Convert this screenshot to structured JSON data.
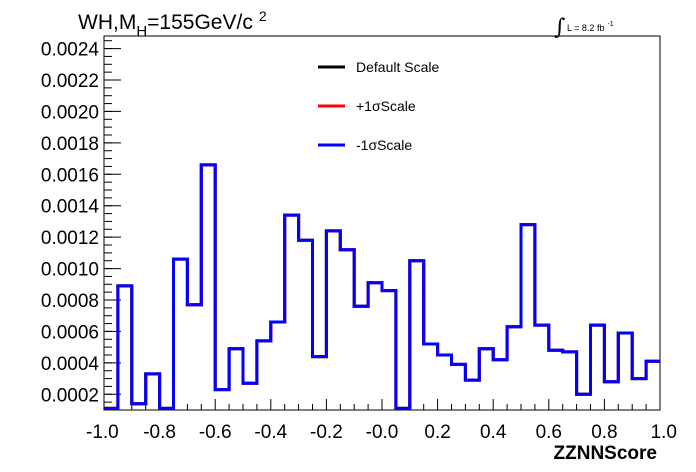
{
  "title": {
    "base": "WH,M",
    "sub": "H",
    "rest": "=155GeV/c",
    "sup": "2"
  },
  "luminosity": {
    "integral_sign": "∫",
    "text": "L = 8.2 fb",
    "sup": "-1"
  },
  "chart_data": {
    "type": "line",
    "title": "WH,MH=155GeV/c2",
    "xlabel": "ZZNNScore",
    "ylabel": "",
    "xlim": [
      -1.0,
      1.0
    ],
    "ylim": [
      0.0001,
      0.00248
    ],
    "x_ticks": [
      "-1.0",
      "-0.8",
      "-0.6",
      "-0.4",
      "-0.2",
      "-0.0",
      "0.2",
      "0.4",
      "0.6",
      "0.8",
      "1.0"
    ],
    "y_ticks": [
      "0.0002",
      "0.0004",
      "0.0006",
      "0.0008",
      "0.0010",
      "0.0012",
      "0.0014",
      "0.0016",
      "0.0018",
      "0.0020",
      "0.0022",
      "0.0024"
    ],
    "bin_edges": [
      -1.0,
      -0.95,
      -0.9,
      -0.85,
      -0.8,
      -0.75,
      -0.7,
      -0.65,
      -0.6,
      -0.55,
      -0.5,
      -0.45,
      -0.4,
      -0.35,
      -0.3,
      -0.25,
      -0.2,
      -0.15,
      -0.1,
      -0.05,
      0.0,
      0.05,
      0.1,
      0.15,
      0.2,
      0.25,
      0.3,
      0.35,
      0.4,
      0.45,
      0.5,
      0.55,
      0.6,
      0.65,
      0.7,
      0.75,
      0.8,
      0.85,
      0.9,
      0.95,
      1.0
    ],
    "series": [
      {
        "name": "Default Scale",
        "color": "#000000",
        "values": [
          0.00011,
          0.00089,
          0.00014,
          0.00033,
          0.00011,
          0.00106,
          0.00077,
          0.00166,
          0.00023,
          0.00049,
          0.00027,
          0.00054,
          0.00066,
          0.00134,
          0.00118,
          0.00044,
          0.00124,
          0.00112,
          0.00076,
          0.00091,
          0.00086,
          0.00011,
          0.00105,
          0.00052,
          0.00045,
          0.00039,
          0.00029,
          0.00049,
          0.00042,
          0.00063,
          0.00128,
          0.00064,
          0.00048,
          0.00047,
          0.0002,
          0.00064,
          0.00028,
          0.00059,
          0.0003,
          0.00041
        ]
      },
      {
        "name": "+1σScale",
        "color": "#ff0000",
        "values": [
          0.00011,
          0.00089,
          0.00014,
          0.00033,
          0.00011,
          0.00106,
          0.00077,
          0.00166,
          0.00023,
          0.00049,
          0.00027,
          0.00054,
          0.00066,
          0.00134,
          0.00118,
          0.00044,
          0.00124,
          0.00112,
          0.00076,
          0.00091,
          0.00086,
          0.00011,
          0.00105,
          0.00052,
          0.00045,
          0.00039,
          0.00029,
          0.00049,
          0.00042,
          0.00063,
          0.00128,
          0.00064,
          0.00048,
          0.00047,
          0.0002,
          0.00064,
          0.00028,
          0.00059,
          0.0003,
          0.00041
        ]
      },
      {
        "name": "-1σScale",
        "color": "#0000ff",
        "values": [
          0.00011,
          0.00089,
          0.00014,
          0.00033,
          0.00011,
          0.00106,
          0.00077,
          0.00166,
          0.00023,
          0.00049,
          0.00027,
          0.00054,
          0.00066,
          0.00134,
          0.00118,
          0.00044,
          0.00124,
          0.00112,
          0.00076,
          0.00091,
          0.00086,
          0.00011,
          0.00105,
          0.00052,
          0.00045,
          0.00039,
          0.00029,
          0.00049,
          0.00042,
          0.00063,
          0.00128,
          0.00064,
          0.00048,
          0.00047,
          0.0002,
          0.00064,
          0.00028,
          0.00059,
          0.0003,
          0.00041
        ]
      }
    ],
    "legend_position": "top-center",
    "grid": false
  }
}
